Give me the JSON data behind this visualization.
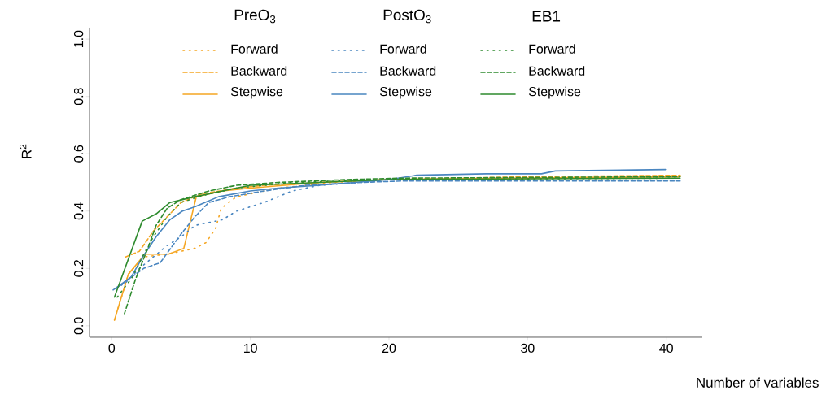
{
  "chart_data": {
    "type": "line",
    "xlabel": "Number of variables",
    "ylabel": "R$^{2}$",
    "xlim": [
      -1.6,
      42.6
    ],
    "ylim": [
      -0.04,
      1.04
    ],
    "xticks": [
      0,
      10,
      20,
      30,
      40
    ],
    "yticks": [
      {
        "value": 0,
        "label": "0.0"
      },
      {
        "value": 0.2,
        "label": "0.2"
      },
      {
        "value": 0.4,
        "label": "0.4"
      },
      {
        "value": 0.6,
        "label": "0.6"
      },
      {
        "value": 0.8,
        "label": "0.8"
      },
      {
        "value": 1,
        "label": "1.0"
      }
    ],
    "legend": "top",
    "annotations": [
      "PreO$_{3}$",
      "PostO$_{3}$",
      "EB1"
    ],
    "series": [
      {
        "name": "Forward",
        "color": "#f5a623",
        "line_style": "dotted",
        "x": [
          0.2,
          1.2,
          2.3,
          4,
          5,
          6,
          6.8,
          7.5,
          7.9,
          9,
          12,
          16,
          20,
          41
        ],
        "values": [
          0.02,
          0.18,
          0.24,
          0.25,
          0.26,
          0.27,
          0.29,
          0.34,
          0.41,
          0.45,
          0.48,
          0.5,
          0.51,
          0.52
        ]
      },
      {
        "name": "Backward",
        "color": "#f5a623",
        "line_style": "dashed",
        "x": [
          1,
          2,
          3,
          4,
          5,
          6.5,
          9,
          11,
          15,
          20,
          30,
          41
        ],
        "values": [
          0.24,
          0.26,
          0.33,
          0.38,
          0.43,
          0.46,
          0.48,
          0.49,
          0.5,
          0.51,
          0.52,
          0.525
        ]
      },
      {
        "name": "Stepwise",
        "color": "#f5a623",
        "line_style": "solid",
        "x": [
          0.2,
          1.2,
          2.4,
          4.1,
          5.2,
          6.1,
          7,
          8,
          10,
          15,
          20,
          41
        ],
        "values": [
          0.02,
          0.18,
          0.25,
          0.25,
          0.27,
          0.45,
          0.46,
          0.47,
          0.48,
          0.5,
          0.51,
          0.52
        ]
      },
      {
        "name": "Forward",
        "color": "#4a86c0",
        "line_style": "dotted",
        "x": [
          0.3,
          1,
          2,
          3,
          4,
          5,
          6,
          8,
          9,
          11,
          12,
          13,
          15,
          18,
          20,
          22
        ],
        "values": [
          0.13,
          0.15,
          0.2,
          0.24,
          0.28,
          0.31,
          0.35,
          0.37,
          0.4,
          0.43,
          0.45,
          0.47,
          0.49,
          0.5,
          0.51,
          0.51
        ]
      },
      {
        "name": "Backward",
        "color": "#4a86c0",
        "line_style": "dashed",
        "x": [
          0.3,
          2.3,
          3.5,
          5,
          6,
          7,
          8.5,
          11,
          14,
          18,
          21,
          41
        ],
        "values": [
          0.13,
          0.2,
          0.22,
          0.32,
          0.38,
          0.43,
          0.45,
          0.47,
          0.49,
          0.5,
          0.505,
          0.505
        ]
      },
      {
        "name": "Stepwise",
        "color": "#4a86c0",
        "line_style": "solid",
        "x": [
          0.1,
          1.4,
          2.3,
          3.2,
          4.2,
          5.1,
          6,
          7.7,
          10,
          12,
          15,
          20,
          22,
          27,
          31,
          32,
          40
        ],
        "values": [
          0.125,
          0.17,
          0.245,
          0.31,
          0.37,
          0.4,
          0.415,
          0.45,
          0.47,
          0.48,
          0.49,
          0.51,
          0.525,
          0.53,
          0.53,
          0.54,
          0.545
        ]
      },
      {
        "name": "Forward",
        "color": "#2e8b2e",
        "line_style": "dotted",
        "x": [
          0.4,
          1.5,
          2.2,
          3,
          4,
          5,
          7,
          9,
          13,
          20,
          41
        ],
        "values": [
          0.1,
          0.17,
          0.24,
          0.31,
          0.38,
          0.43,
          0.46,
          0.48,
          0.5,
          0.51,
          0.515
        ]
      },
      {
        "name": "Backward",
        "color": "#2e8b2e",
        "line_style": "dashed",
        "x": [
          0.9,
          1.7,
          2.6,
          3.2,
          4,
          5,
          7,
          9,
          12,
          17,
          21,
          41
        ],
        "values": [
          0.04,
          0.16,
          0.27,
          0.35,
          0.41,
          0.44,
          0.47,
          0.49,
          0.5,
          0.51,
          0.515,
          0.52
        ]
      },
      {
        "name": "Stepwise",
        "color": "#2e8b2e",
        "line_style": "solid",
        "x": [
          0.2,
          2.2,
          3.2,
          4.2,
          6,
          8,
          10,
          15,
          20,
          41
        ],
        "values": [
          0.1,
          0.365,
          0.39,
          0.43,
          0.45,
          0.47,
          0.49,
          0.5,
          0.51,
          0.515
        ]
      }
    ]
  }
}
